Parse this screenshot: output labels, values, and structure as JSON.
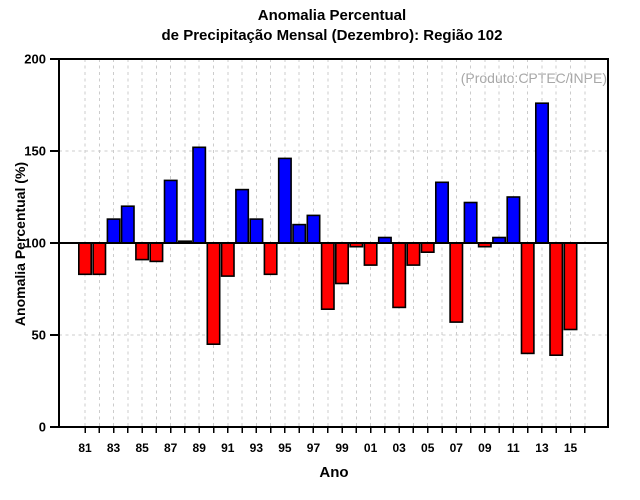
{
  "chart_data": {
    "type": "bar",
    "title_line1": "Anomalia Percentual",
    "title_line2": "de Precipitação Mensal (Dezembro): Região 102",
    "annotation": "(Produto:CPTEC/INPE)",
    "xlabel": "Ano",
    "ylabel": "Anomalia Percentual (%)",
    "baseline": 100,
    "ylim": [
      0,
      200
    ],
    "y_ticks": [
      0,
      50,
      100,
      150,
      200
    ],
    "dashed_gridlines_y": [
      50,
      150
    ],
    "x_tick_year_range": [
      1981,
      2016
    ],
    "x_tick_labels": [
      "81",
      "83",
      "85",
      "87",
      "89",
      "91",
      "93",
      "95",
      "97",
      "99",
      "01",
      "03",
      "05",
      "07",
      "09",
      "11",
      "13",
      "15"
    ],
    "years": [
      1981,
      1982,
      1983,
      1984,
      1985,
      1986,
      1987,
      1988,
      1989,
      1990,
      1991,
      1992,
      1993,
      1994,
      1995,
      1996,
      1997,
      1998,
      1999,
      2000,
      2001,
      2002,
      2003,
      2004,
      2005,
      2006,
      2007,
      2008,
      2009,
      2010,
      2011,
      2012,
      2013,
      2014,
      2015
    ],
    "values": [
      83,
      83,
      113,
      120,
      91,
      90,
      134,
      101,
      152,
      45,
      82,
      129,
      113,
      83,
      146,
      110,
      115,
      64,
      78,
      98,
      88,
      103,
      65,
      88,
      95,
      133,
      57,
      122,
      98,
      103,
      125,
      40,
      176,
      39,
      53
    ],
    "legend_position": "none",
    "grid": true,
    "colors": {
      "above_baseline": "#0000ff",
      "below_baseline": "#ff0000",
      "bar_outline": "#000000",
      "gridline": "#cccccc",
      "annotation_text": "#a8a8a8",
      "axis": "#000000"
    }
  }
}
